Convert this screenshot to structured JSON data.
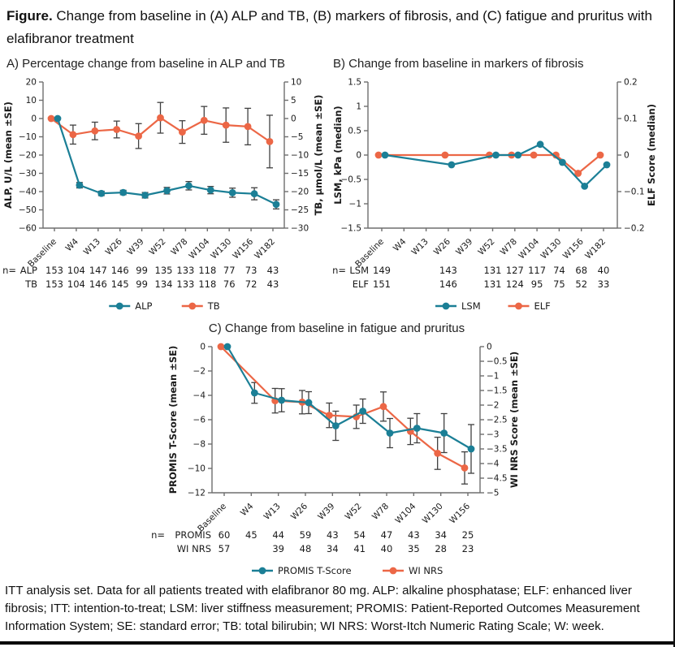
{
  "title": {
    "label": "Figure.",
    "text": " Change from baseline in (A) ALP and TB, (B) markers of fibrosis, and (C) fatigue and pruritus with elafibranor treatment"
  },
  "footnote": "ITT analysis set. Data for all patients treated with elafibranor 80 mg. ALP: alkaline phosphatase; ELF: enhanced liver fibrosis; ITT: intention-to-treat; LSM: liver stiffness measurement; PROMIS: Patient-Reported Outcomes Measurement Information System; SE: standard error; TB: total bilirubin; WI NRS: Worst-Itch Numeric Rating Scale; W: week.",
  "colors": {
    "teal": "#1B7F96",
    "orange": "#EC6746",
    "axis": "#6E6E6E",
    "error": "#404040",
    "text": "#1A1A1A"
  },
  "chart_data": [
    {
      "id": "A",
      "type": "line",
      "title": "A) Percentage change from baseline in ALP and TB",
      "categories": [
        "Baseline",
        "W4",
        "W13",
        "W26",
        "W39",
        "W52",
        "W78",
        "W104",
        "W130",
        "W156",
        "W182"
      ],
      "left_axis": {
        "label": "ALP, U/L (mean ±SE)",
        "min": -60,
        "max": 20,
        "step": 10
      },
      "right_axis": {
        "label": "TB, µmol/L (mean ±SE)",
        "min": -30,
        "max": 10,
        "step": 5
      },
      "series": [
        {
          "name": "ALP",
          "axis": "left",
          "color_key": "teal",
          "values": [
            0,
            -36.5,
            -41,
            -40.5,
            -42,
            -39.5,
            -36.8,
            -39.2,
            -40.6,
            -41.2,
            -47
          ],
          "se": [
            0,
            1.5,
            1.2,
            1.2,
            1.5,
            1.8,
            2.3,
            2,
            2.5,
            3.3,
            2.5
          ]
        },
        {
          "name": "TB",
          "axis": "right",
          "color_key": "orange",
          "values": [
            0,
            -4.4,
            -3.4,
            -3,
            -4.8,
            0.2,
            -3.7,
            -0.5,
            -1.8,
            -2.2,
            -6.3
          ],
          "se": [
            0,
            2.6,
            2.4,
            2.3,
            3.4,
            4.2,
            3.1,
            3.8,
            4.7,
            5,
            7.2
          ]
        }
      ],
      "n_label": "n=",
      "n_rows": [
        {
          "name": "ALP",
          "values": [
            "153",
            "104",
            "147",
            "146",
            "99",
            "135",
            "133",
            "118",
            "77",
            "73",
            "43"
          ]
        },
        {
          "name": "TB",
          "values": [
            "153",
            "104",
            "146",
            "145",
            "99",
            "134",
            "133",
            "118",
            "76",
            "72",
            "43"
          ]
        }
      ],
      "legend": [
        {
          "label": "ALP",
          "color_key": "teal"
        },
        {
          "label": "TB",
          "color_key": "orange"
        }
      ]
    },
    {
      "id": "B",
      "type": "line",
      "title": "B) Change from baseline in markers of fibrosis",
      "categories": [
        "Baseline",
        "W4",
        "W13",
        "W26",
        "W39",
        "W52",
        "W78",
        "W104",
        "W130",
        "W156",
        "W182"
      ],
      "left_axis": {
        "label": "LSM, kPa (median)",
        "min": -1.5,
        "max": 1.5,
        "step": 0.5
      },
      "right_axis": {
        "label": "ELF Score (median)",
        "min": -0.2,
        "max": 0.2,
        "step": 0.1
      },
      "series": [
        {
          "name": "LSM",
          "axis": "left",
          "color_key": "teal",
          "values": [
            0,
            null,
            null,
            -0.2,
            null,
            0,
            0,
            0.22,
            -0.15,
            -0.64,
            -0.2
          ],
          "se": null
        },
        {
          "name": "ELF",
          "axis": "right",
          "color_key": "orange",
          "values": [
            0,
            null,
            null,
            0,
            null,
            0,
            0,
            0,
            0,
            -0.05,
            0
          ],
          "se": null
        }
      ],
      "n_label": "n=",
      "n_rows": [
        {
          "name": "LSM",
          "values": [
            "149",
            "",
            "",
            "143",
            "",
            "131",
            "127",
            "117",
            "74",
            "68",
            "40"
          ]
        },
        {
          "name": "ELF",
          "values": [
            "151",
            "",
            "",
            "146",
            "",
            "131",
            "124",
            "95",
            "75",
            "52",
            "33"
          ]
        }
      ],
      "legend": [
        {
          "label": "LSM",
          "color_key": "teal"
        },
        {
          "label": "ELF",
          "color_key": "orange"
        }
      ]
    },
    {
      "id": "C",
      "type": "line",
      "title": "C) Change from baseline in fatigue and pruritus",
      "categories": [
        "Baseline",
        "W4",
        "W13",
        "W26",
        "W39",
        "W52",
        "W78",
        "W104",
        "W130",
        "W156"
      ],
      "left_axis": {
        "label": "PROMIS T-Score (mean ±SE)",
        "min": -12,
        "max": 0,
        "step": 2
      },
      "right_axis": {
        "label": "WI NRS Score (mean ±SE)",
        "min": -5,
        "max": 0,
        "step": 0.5
      },
      "series": [
        {
          "name": "PROMIS T-Score",
          "axis": "left",
          "color_key": "teal",
          "values": [
            0,
            -3.8,
            -4.4,
            -4.6,
            -6.5,
            -5.3,
            -7.1,
            -6.7,
            -7.1,
            -8.4
          ],
          "se": [
            0,
            0.85,
            0.95,
            0.9,
            1.2,
            1,
            1.2,
            1.2,
            1.6,
            2
          ]
        },
        {
          "name": "WI NRS",
          "axis": "right",
          "color_key": "orange",
          "values": [
            0,
            null,
            -1.85,
            -1.9,
            -2.35,
            -2.4,
            -2.05,
            -2.9,
            -3.65,
            -4.15
          ],
          "se": [
            0,
            null,
            0.42,
            0.4,
            0.42,
            0.4,
            0.5,
            0.45,
            0.55,
            0.55
          ]
        }
      ],
      "n_label": "n=",
      "n_rows": [
        {
          "name": "PROMIS",
          "values": [
            "60",
            "45",
            "44",
            "59",
            "43",
            "54",
            "47",
            "43",
            "34",
            "25"
          ]
        },
        {
          "name": "WI NRS",
          "values": [
            "57",
            "",
            "39",
            "48",
            "34",
            "41",
            "40",
            "35",
            "28",
            "23"
          ]
        }
      ],
      "legend": [
        {
          "label": "PROMIS T-Score",
          "color_key": "teal"
        },
        {
          "label": "WI NRS",
          "color_key": "orange"
        }
      ]
    }
  ]
}
